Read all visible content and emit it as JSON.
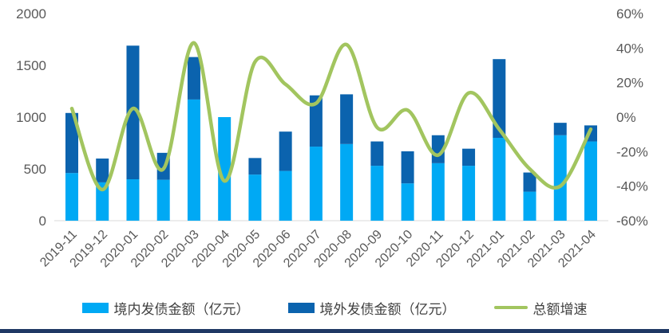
{
  "chart_data": {
    "type": "combo-stacked-bar-line",
    "title": "",
    "categories": [
      "2019-11",
      "2019-12",
      "2020-01",
      "2020-02",
      "2020-03",
      "2020-04",
      "2020-05",
      "2020-06",
      "2020-07",
      "2020-08",
      "2020-09",
      "2020-10",
      "2020-11",
      "2020-12",
      "2021-01",
      "2021-02",
      "2021-03",
      "2021-04"
    ],
    "series": [
      {
        "name": "境内发债金额（亿元）",
        "type": "bar",
        "stack": "total",
        "axis": "left",
        "color": "#00A9F4",
        "values": [
          460,
          370,
          400,
          395,
          1170,
          1000,
          445,
          480,
          715,
          740,
          530,
          360,
          555,
          530,
          800,
          280,
          825,
          765
        ]
      },
      {
        "name": "境外发债金额（亿元）",
        "type": "bar",
        "stack": "total",
        "axis": "left",
        "color": "#0B63AE",
        "values": [
          580,
          230,
          1290,
          260,
          410,
          0,
          160,
          380,
          495,
          480,
          235,
          310,
          270,
          165,
          760,
          185,
          120,
          155
        ]
      },
      {
        "name": "总额增速",
        "type": "line",
        "smooth": true,
        "axis": "right",
        "color": "#A2C55F",
        "values": [
          5,
          -42,
          5,
          -30,
          43,
          -37,
          32,
          19,
          8,
          42,
          -6,
          4,
          -22,
          14,
          -7,
          -30,
          -40,
          -7
        ]
      }
    ],
    "left_axis": {
      "min": 0,
      "max": 2000,
      "step": 500,
      "tick_labels": [
        "0",
        "500",
        "1000",
        "1500",
        "2000"
      ]
    },
    "right_axis": {
      "min": -60,
      "max": 60,
      "step": 20,
      "tick_labels": [
        "-60%",
        "-40%",
        "-20%",
        "0%",
        "20%",
        "40%",
        "60%"
      ],
      "unit": "%"
    },
    "grid": "none",
    "legend_position": "bottom",
    "x_label_rotation_deg": 45
  },
  "style": {
    "axis_text_color": "#595959",
    "legend_text_color": "#404040",
    "baseline_color": "#D9D9D9",
    "background_color": "#FFFFFF",
    "bottom_rule_color": "#1F3864"
  }
}
